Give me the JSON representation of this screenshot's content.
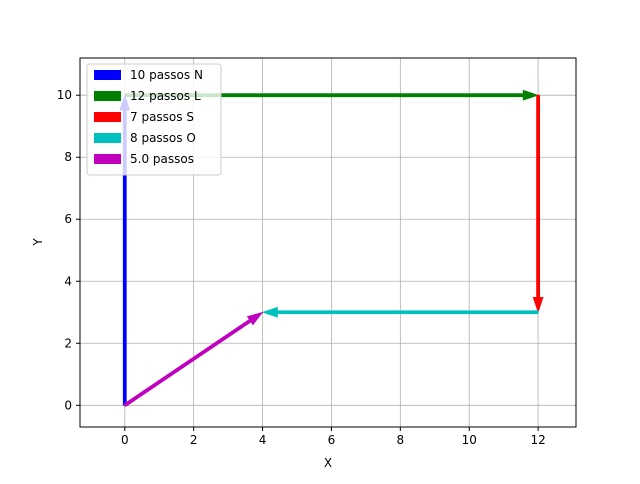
{
  "chart_data": {
    "type": "vector",
    "xlabel": "X",
    "ylabel": "Y",
    "xlim": [
      -1.3,
      13.1
    ],
    "ylim": [
      -0.7,
      11.2
    ],
    "xticks": [
      0,
      2,
      4,
      6,
      8,
      10,
      12
    ],
    "yticks": [
      0,
      2,
      4,
      6,
      8,
      10
    ],
    "grid": true,
    "legend_position": "top-left",
    "series": [
      {
        "name": "10 passos N",
        "color": "#0000ff",
        "from": [
          0,
          0
        ],
        "to": [
          0,
          10
        ]
      },
      {
        "name": "12 passos L",
        "color": "#008000",
        "from": [
          0,
          10
        ],
        "to": [
          12,
          10
        ]
      },
      {
        "name": "7 passos S",
        "color": "#ff0000",
        "from": [
          12,
          10
        ],
        "to": [
          12,
          3
        ]
      },
      {
        "name": "8 passos O",
        "color": "#00bfbf",
        "from": [
          12,
          3
        ],
        "to": [
          4,
          3
        ]
      },
      {
        "name": "5.0 passos",
        "color": "#bf00bf",
        "from": [
          0,
          0
        ],
        "to": [
          4,
          3
        ]
      }
    ]
  }
}
